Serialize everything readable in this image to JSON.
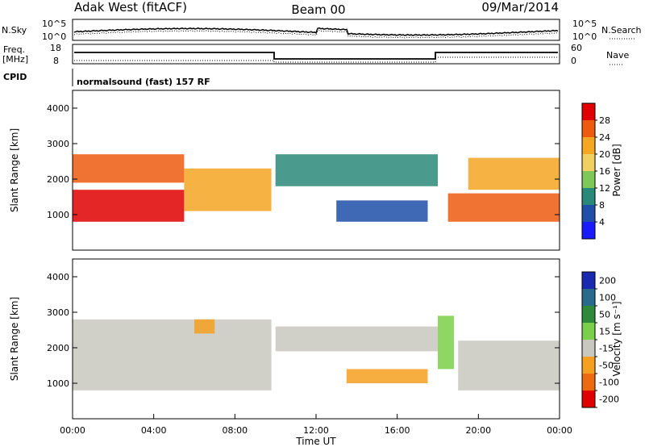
{
  "header": {
    "station": "Adak West (fitACF)",
    "beam": "Beam 00",
    "date": "09/Mar/2014"
  },
  "top_panels": {
    "noise": {
      "left_label": "N.Sky",
      "right_label": "N.Search",
      "left_ticks": [
        "10^5",
        "10^0"
      ],
      "right_ticks": [
        "10^5",
        "10^0"
      ]
    },
    "freq": {
      "left_label_1": "Freq.",
      "left_label_2": "[MHz]",
      "right_label": "Nave",
      "left_ticks": [
        "18",
        "8"
      ],
      "right_ticks": [
        "60",
        "0"
      ]
    },
    "cpid": {
      "label": "CPID",
      "text": "normalsound (fast) 157 RF"
    }
  },
  "chart_data": [
    {
      "type": "heatmap",
      "title": "",
      "xlabel": "",
      "ylabel": "Slant Range [km]",
      "xlim": [
        "00:00",
        "24:00"
      ],
      "ylim": [
        0,
        4500
      ],
      "ytick_labels": [
        "1000",
        "2000",
        "3000",
        "4000"
      ],
      "colorbar": {
        "label": "Power [dB]",
        "ticks": [
          "4",
          "8",
          "12",
          "16",
          "20",
          "24",
          "28"
        ],
        "colors": [
          "#1a1aff",
          "#1f4fa8",
          "#2a8a7a",
          "#7ec85a",
          "#f0d060",
          "#f5a623",
          "#ee5a10",
          "#e00000"
        ]
      },
      "regions": [
        {
          "start": 0.0,
          "end": 5.5,
          "r0": 800,
          "r1": 1700,
          "value": 28
        },
        {
          "start": 0.0,
          "end": 5.5,
          "r0": 1900,
          "r1": 2700,
          "value": 24
        },
        {
          "start": 5.5,
          "end": 9.8,
          "r0": 1100,
          "r1": 2300,
          "value": 22
        },
        {
          "start": 10.0,
          "end": 18.0,
          "r0": 1800,
          "r1": 2700,
          "value": 10
        },
        {
          "start": 13.0,
          "end": 17.5,
          "r0": 800,
          "r1": 1400,
          "value": 6
        },
        {
          "start": 18.5,
          "end": 24.0,
          "r0": 800,
          "r1": 1600,
          "value": 26
        },
        {
          "start": 19.5,
          "end": 24.0,
          "r0": 1700,
          "r1": 2600,
          "value": 20
        }
      ]
    },
    {
      "type": "heatmap",
      "title": "",
      "xlabel": "Time UT",
      "ylabel": "Slant Range [km]",
      "xlim": [
        "00:00",
        "24:00"
      ],
      "ylim": [
        0,
        4500
      ],
      "xtick_labels": [
        "00:00",
        "04:00",
        "08:00",
        "12:00",
        "16:00",
        "20:00",
        "00:00"
      ],
      "ytick_labels": [
        "1000",
        "2000",
        "3000",
        "4000"
      ],
      "colorbar": {
        "label": "Velocity [m s⁻¹]",
        "ticks": [
          "200",
          "100",
          "50",
          "15",
          "-15",
          "-50",
          "-100",
          "-200"
        ],
        "colors": [
          "#1a2ab0",
          "#2a6a8a",
          "#2e8a3a",
          "#7ad04a",
          "#c8c8c0",
          "#f5a020",
          "#ee6a10",
          "#e00000"
        ]
      },
      "regions": [
        {
          "start": 0.0,
          "end": 9.8,
          "r0": 800,
          "r1": 2800,
          "value": 0
        },
        {
          "start": 6.0,
          "end": 7.0,
          "r0": 2400,
          "r1": 2800,
          "value": -40
        },
        {
          "start": 10.0,
          "end": 18.0,
          "r0": 1900,
          "r1": 2600,
          "value": 0
        },
        {
          "start": 13.5,
          "end": 17.5,
          "r0": 1000,
          "r1": 1400,
          "value": -40
        },
        {
          "start": 18.0,
          "end": 18.8,
          "r0": 1400,
          "r1": 2900,
          "value": 40
        },
        {
          "start": 19.0,
          "end": 24.0,
          "r0": 800,
          "r1": 2200,
          "value": 0
        }
      ]
    }
  ]
}
